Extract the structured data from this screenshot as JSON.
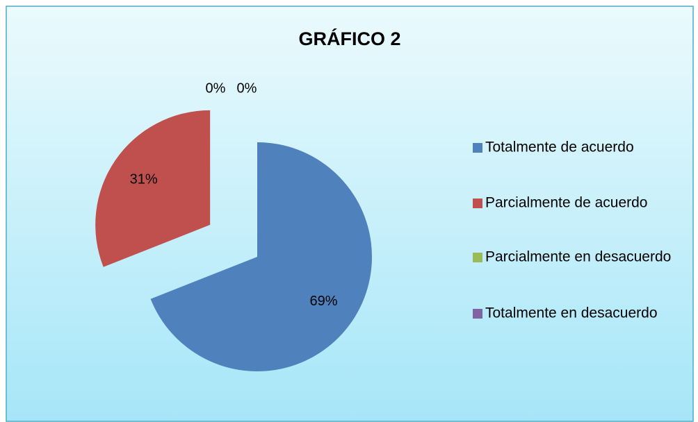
{
  "chart_data": {
    "type": "pie",
    "title": "GRÁFICO 2",
    "categories": [
      "Totalmente de acuerdo",
      "Parcialmente de acuerdo",
      "Parcialmente en desacuerdo",
      "Totalmente en desacuerdo"
    ],
    "values": [
      69,
      31,
      0,
      0
    ],
    "value_labels": [
      "69%",
      "31%",
      "0%",
      "0%"
    ],
    "colors": [
      "#4f81bd",
      "#c0504d",
      "#9bbb59",
      "#8064a2"
    ],
    "legend": "right"
  }
}
